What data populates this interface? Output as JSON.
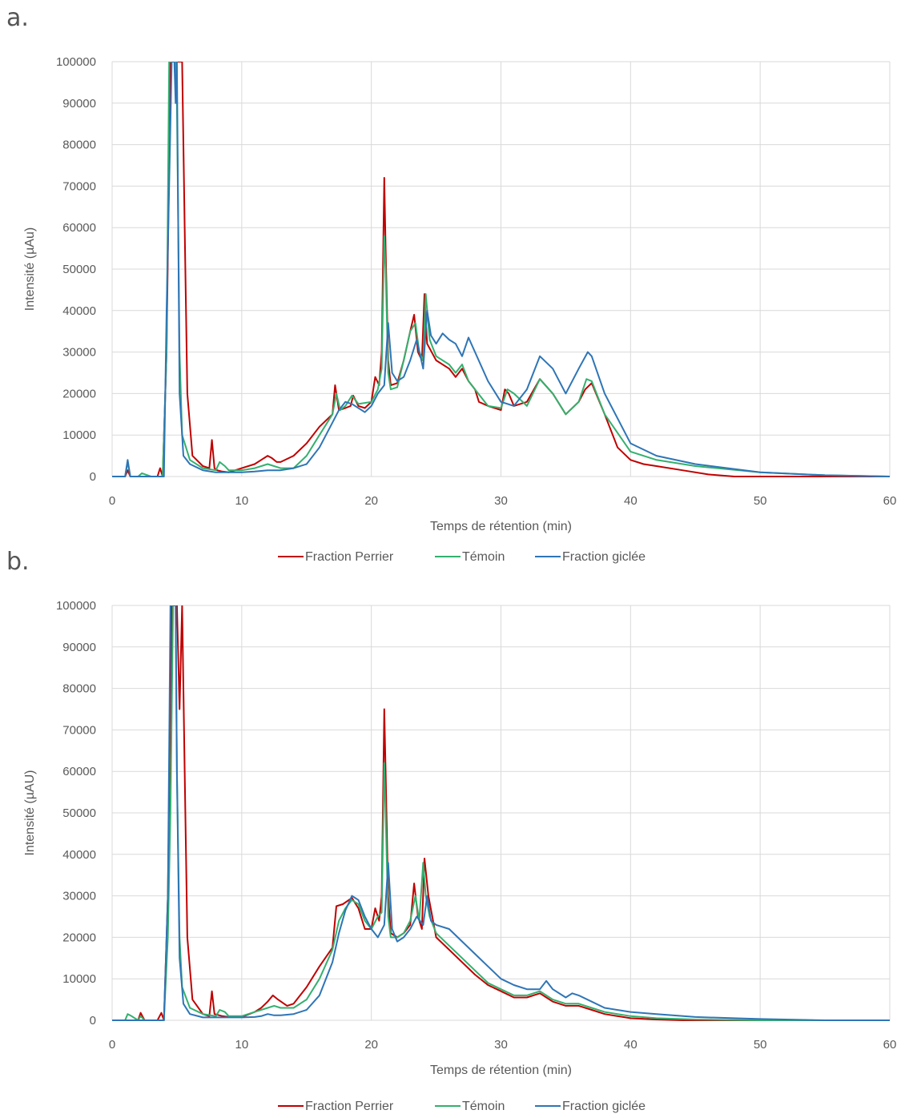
{
  "chart_data": [
    {
      "panel_label": "a.",
      "type": "line",
      "xlabel": "Temps de rétention (min)",
      "ylabel": "Intensité (µAu)",
      "xlim": [
        0,
        60
      ],
      "ylim": [
        0,
        100000
      ],
      "x_ticks": [
        0,
        10,
        20,
        30,
        40,
        50,
        60
      ],
      "y_ticks": [
        0,
        10000,
        20000,
        30000,
        40000,
        50000,
        60000,
        70000,
        80000,
        90000,
        100000
      ],
      "grid": true,
      "legend_position": "bottom",
      "series": [
        {
          "name": "Fraction Perrier",
          "color": "#c00000",
          "x": [
            0,
            1,
            1.2,
            1.4,
            2,
            3.5,
            3.7,
            3.9,
            4.2,
            4.5,
            4.8,
            5.0,
            5.1,
            5.2,
            5.4,
            5.6,
            5.8,
            6.2,
            7,
            7.5,
            7.7,
            7.9,
            8.1,
            8.5,
            9,
            10,
            11,
            11.5,
            12,
            12.3,
            12.7,
            13,
            14,
            15,
            16,
            17,
            17.2,
            17.5,
            18,
            18.4,
            18.6,
            19,
            19.5,
            20,
            20.3,
            20.6,
            20.8,
            21.0,
            21.1,
            21.3,
            21.5,
            22,
            22.5,
            23,
            23.3,
            23.6,
            23.9,
            24.1,
            24.3,
            25,
            26,
            26.5,
            27,
            27.5,
            28,
            28.3,
            29,
            30,
            30.3,
            30.6,
            31,
            32,
            33,
            34,
            35,
            36,
            36.5,
            37,
            38,
            39,
            40,
            41,
            42,
            44,
            46,
            48,
            50,
            55,
            60
          ],
          "y": [
            0,
            0,
            1500,
            0,
            0,
            0,
            2000,
            0,
            30000,
            100000,
            100000,
            100000,
            100000,
            100000,
            100000,
            60000,
            20000,
            5000,
            2500,
            2000,
            8800,
            2000,
            1500,
            1200,
            1000,
            2000,
            3000,
            4000,
            5000,
            4500,
            3500,
            3500,
            5000,
            8000,
            12000,
            15000,
            22000,
            16000,
            16500,
            17000,
            19500,
            17000,
            16500,
            18000,
            24000,
            22000,
            30000,
            72000,
            55000,
            28000,
            22000,
            22500,
            28000,
            35000,
            39000,
            30000,
            28000,
            44000,
            32000,
            28000,
            26000,
            24000,
            26000,
            23000,
            21000,
            18000,
            17000,
            16000,
            21000,
            20000,
            17000,
            18000,
            23500,
            20000,
            15000,
            18000,
            21000,
            22500,
            15000,
            7000,
            4000,
            3000,
            2500,
            1500,
            500,
            0,
            0,
            0,
            0
          ]
        },
        {
          "name": "Témoin",
          "color": "#33b06e",
          "x": [
            0,
            1,
            1.2,
            1.4,
            2,
            2.3,
            3,
            3.9,
            4.2,
            4.4,
            4.7,
            4.9,
            5.0,
            5.2,
            5.4,
            6,
            7,
            8,
            8.3,
            8.7,
            9,
            10,
            11,
            12,
            13,
            14,
            15,
            16,
            17,
            17.3,
            17.6,
            18,
            18.5,
            19,
            20,
            20.5,
            20.8,
            21.0,
            21.1,
            21.3,
            21.5,
            22,
            22.5,
            23,
            23.4,
            23.7,
            24,
            24.2,
            24.5,
            25,
            26,
            26.5,
            27,
            27.5,
            28,
            29,
            30,
            30.5,
            31,
            32,
            33,
            34,
            35,
            36,
            36.6,
            37,
            38,
            40,
            42,
            45,
            50,
            55,
            60
          ],
          "y": [
            0,
            0,
            3500,
            0,
            0,
            800,
            0,
            0,
            30000,
            100000,
            100000,
            100000,
            90000,
            30000,
            10000,
            4000,
            2000,
            1500,
            3500,
            2500,
            1500,
            1500,
            2000,
            3000,
            2000,
            2000,
            5000,
            10000,
            15000,
            20000,
            16000,
            17000,
            19500,
            17500,
            18000,
            21000,
            26000,
            58000,
            50000,
            25000,
            21000,
            21500,
            28000,
            35000,
            37000,
            30000,
            28000,
            44000,
            33000,
            29000,
            27000,
            25000,
            27000,
            23000,
            21000,
            17000,
            16500,
            21000,
            20000,
            17000,
            23500,
            20000,
            15000,
            18000,
            23500,
            23000,
            15000,
            6000,
            4000,
            2500,
            1000,
            300,
            0
          ]
        },
        {
          "name": "Fraction giclée",
          "color": "#2e75b6",
          "x": [
            0,
            1,
            1.2,
            1.4,
            2,
            3,
            4.0,
            4.2,
            4.4,
            4.6,
            4.8,
            4.9,
            5.0,
            5.2,
            5.5,
            6,
            7,
            8,
            9,
            10,
            11,
            12,
            13,
            14,
            15,
            16,
            17,
            17.5,
            18,
            18.5,
            19,
            19.5,
            20,
            20.5,
            21.0,
            21.3,
            21.6,
            22,
            22.5,
            23,
            23.5,
            24,
            24.3,
            24.6,
            25,
            25.5,
            26,
            26.5,
            27,
            27.5,
            28,
            29,
            30,
            31,
            32,
            33,
            34,
            35,
            36,
            36.7,
            37,
            38,
            40,
            42,
            45,
            50,
            55,
            60
          ],
          "y": [
            0,
            0,
            4000,
            0,
            0,
            0,
            0,
            40000,
            70000,
            100000,
            100000,
            90000,
            100000,
            20000,
            5000,
            3000,
            1500,
            1000,
            1000,
            1000,
            1200,
            1500,
            1500,
            2000,
            3000,
            7000,
            13000,
            16000,
            18000,
            17500,
            16500,
            15500,
            17000,
            20000,
            22000,
            37000,
            25000,
            23000,
            24000,
            28000,
            33000,
            26000,
            40000,
            34000,
            32000,
            34500,
            33000,
            32000,
            29000,
            33500,
            30000,
            23000,
            18000,
            17000,
            21000,
            29000,
            26000,
            20000,
            26000,
            30000,
            29000,
            20000,
            8000,
            5000,
            3000,
            1000,
            300,
            0
          ]
        }
      ]
    },
    {
      "panel_label": "b.",
      "type": "line",
      "xlabel": "Temps de rétention (min)",
      "ylabel": "Intensité (µAU)",
      "xlim": [
        0,
        60
      ],
      "ylim": [
        0,
        100000
      ],
      "x_ticks": [
        0,
        10,
        20,
        30,
        40,
        50,
        60
      ],
      "y_ticks": [
        0,
        10000,
        20000,
        30000,
        40000,
        50000,
        60000,
        70000,
        80000,
        90000,
        100000
      ],
      "grid": true,
      "legend_position": "bottom",
      "series": [
        {
          "name": "Fraction Perrier",
          "color": "#c00000",
          "x": [
            0,
            1,
            1.5,
            2,
            2.2,
            2.5,
            3.5,
            3.8,
            4.0,
            4.3,
            4.6,
            4.8,
            5.0,
            5.2,
            5.4,
            5.6,
            5.8,
            6.2,
            7,
            7.5,
            7.7,
            7.9,
            8.5,
            9,
            10,
            11,
            11.5,
            12,
            12.4,
            12.8,
            13.5,
            14,
            15,
            16,
            17,
            17.3,
            17.8,
            18.5,
            19,
            19.5,
            20,
            20.3,
            20.6,
            20.8,
            21.0,
            21.1,
            21.3,
            21.5,
            22,
            22.5,
            23,
            23.3,
            23.6,
            23.9,
            24.1,
            24.4,
            25,
            26,
            27,
            28,
            29,
            30,
            31,
            32,
            33,
            34,
            35,
            36,
            37,
            38,
            40,
            42,
            44,
            45,
            50,
            55,
            60
          ],
          "y": [
            0,
            0,
            0,
            0,
            1800,
            0,
            0,
            1800,
            0,
            30000,
            100000,
            100000,
            100000,
            75000,
            100000,
            60000,
            20000,
            5000,
            1500,
            1000,
            7000,
            1500,
            1000,
            800,
            800,
            2000,
            3000,
            4500,
            6000,
            5000,
            3500,
            4000,
            8000,
            13000,
            17500,
            27500,
            28000,
            29500,
            27000,
            22000,
            22000,
            27000,
            24000,
            30000,
            75000,
            60000,
            30000,
            21000,
            20000,
            21000,
            23000,
            33000,
            25000,
            22000,
            39000,
            30000,
            20000,
            17000,
            14000,
            11000,
            8500,
            7000,
            5500,
            5500,
            6500,
            4500,
            3500,
            3500,
            2500,
            1500,
            500,
            200,
            0,
            0,
            0,
            0,
            0
          ]
        },
        {
          "name": "Témoin",
          "color": "#33b06e",
          "x": [
            0,
            1,
            1.2,
            1.5,
            2,
            2.2,
            2.5,
            3.5,
            4.0,
            4.3,
            4.5,
            4.7,
            4.9,
            5.0,
            5.2,
            5.4,
            6,
            7,
            8,
            8.3,
            8.7,
            9,
            10,
            11,
            12,
            12.5,
            13,
            14,
            15,
            16,
            17,
            17.5,
            18,
            18.5,
            19,
            19.5,
            20,
            20.5,
            20.8,
            21.0,
            21.1,
            21.3,
            21.5,
            22,
            22.5,
            23,
            23.4,
            23.7,
            24,
            24.2,
            24.5,
            25,
            26,
            27,
            28,
            29,
            30,
            31,
            32,
            33,
            34,
            35,
            36,
            37,
            38,
            40,
            42,
            45,
            50,
            55,
            60
          ],
          "y": [
            0,
            0,
            1500,
            1000,
            0,
            1000,
            0,
            0,
            0,
            20000,
            50000,
            100000,
            100000,
            60000,
            20000,
            8000,
            3000,
            1500,
            1000,
            2500,
            2000,
            1000,
            1000,
            2000,
            3000,
            3500,
            3000,
            3000,
            5000,
            10000,
            17000,
            24000,
            27000,
            29000,
            28000,
            24000,
            22000,
            25000,
            26000,
            62000,
            50000,
            25000,
            20000,
            20000,
            21000,
            24000,
            30000,
            24000,
            38000,
            30000,
            25000,
            21000,
            18000,
            15000,
            12000,
            9000,
            7500,
            6000,
            6000,
            7000,
            5000,
            4000,
            4000,
            3000,
            2000,
            1000,
            500,
            200,
            0,
            0,
            0
          ]
        },
        {
          "name": "Fraction giclée",
          "color": "#2e75b6",
          "x": [
            0,
            1,
            2,
            3,
            4.0,
            4.3,
            4.5,
            4.7,
            4.9,
            5.0,
            5.2,
            5.5,
            6,
            7,
            8,
            9,
            10,
            11,
            11.5,
            12,
            12.5,
            13,
            14,
            15,
            16,
            17,
            17.5,
            18,
            18.5,
            19,
            19.5,
            20,
            20.5,
            21.0,
            21.3,
            21.6,
            22,
            22.5,
            23,
            23.5,
            24,
            24.3,
            24.6,
            25,
            26,
            27,
            28,
            29,
            30,
            31,
            32,
            33,
            33.5,
            34,
            35,
            35.5,
            36,
            37,
            38,
            40,
            42,
            45,
            50,
            55,
            60
          ],
          "y": [
            0,
            0,
            0,
            0,
            0,
            30000,
            100000,
            100000,
            100000,
            60000,
            15000,
            4000,
            1500,
            700,
            700,
            700,
            700,
            800,
            1000,
            1500,
            1200,
            1200,
            1500,
            2500,
            6000,
            14000,
            21000,
            26500,
            30000,
            29000,
            25000,
            22000,
            20000,
            23000,
            38000,
            22000,
            19000,
            20000,
            22000,
            25000,
            23000,
            30000,
            24000,
            23000,
            22000,
            19000,
            16000,
            13000,
            10000,
            8500,
            7500,
            7500,
            9500,
            7500,
            5500,
            6500,
            6000,
            4500,
            3000,
            2000,
            1500,
            800,
            300,
            0,
            0
          ]
        }
      ]
    }
  ]
}
